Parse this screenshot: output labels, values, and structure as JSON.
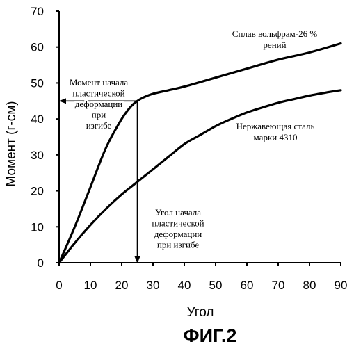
{
  "chart_data": {
    "type": "line",
    "xlabel": "Угол",
    "ylabel": "Момент (г-см)",
    "xlim": [
      0,
      90
    ],
    "ylim": [
      0,
      70
    ],
    "x_ticks": [
      0,
      10,
      20,
      30,
      40,
      50,
      60,
      70,
      80,
      90
    ],
    "y_ticks": [
      0,
      10,
      20,
      30,
      40,
      50,
      60,
      70
    ],
    "grid": false,
    "series": [
      {
        "name": "Сплав вольфрам-26 % рений",
        "name_lines": [
          "Сплав вольфрам-26 %",
          "рений"
        ],
        "x": [
          0,
          5,
          10,
          15,
          20,
          23,
          25,
          27,
          30,
          35,
          40,
          50,
          60,
          70,
          80,
          90
        ],
        "y": [
          0,
          10,
          21,
          32,
          40,
          43.5,
          45,
          46,
          47,
          48,
          49,
          51.5,
          54,
          56.5,
          58.5,
          61
        ]
      },
      {
        "name": "Нержавеющая сталь марки 4310",
        "name_lines": [
          "Нержавеющая сталь",
          "марки 4310"
        ],
        "x": [
          0,
          5,
          10,
          15,
          20,
          25,
          30,
          35,
          40,
          45,
          50,
          55,
          60,
          65,
          70,
          75,
          80,
          85,
          90
        ],
        "y": [
          0,
          5.5,
          10.5,
          15,
          19,
          22.5,
          26,
          29.5,
          33,
          35.5,
          38,
          40,
          41.8,
          43.2,
          44.5,
          45.5,
          46.5,
          47.3,
          48
        ]
      }
    ],
    "annotations": [
      {
        "id": "moment",
        "lines": [
          "Момент начала",
          "пластической",
          "деформации",
          "при",
          "изгибе"
        ],
        "arrow_from": [
          25,
          45
        ],
        "arrow_to": [
          0,
          45
        ]
      },
      {
        "id": "angle",
        "lines": [
          "Угол начала",
          "пластической",
          "деформации",
          "при изгибе"
        ],
        "arrow_from": [
          25,
          45
        ],
        "arrow_to": [
          25,
          0
        ]
      }
    ],
    "figure_label": "ФИГ.2"
  }
}
